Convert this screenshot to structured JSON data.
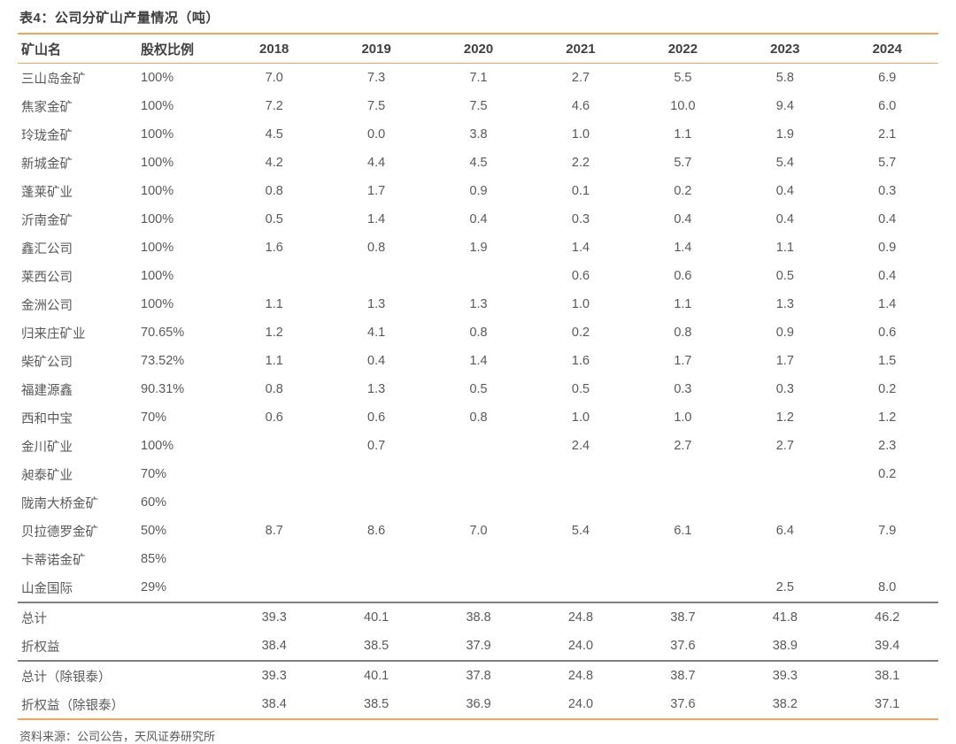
{
  "colors": {
    "accent_orange": "#F2A45F",
    "divider_gray": "#7F7F7F",
    "header_text": "#404040",
    "body_text": "#595959"
  },
  "chart_data": {
    "type": "table",
    "title": "表4：公司分矿山产量情况（吨）",
    "source": "资料来源：公司公告，天风证券研究所",
    "columns": [
      "矿山名",
      "股权比例",
      "2018",
      "2019",
      "2020",
      "2021",
      "2022",
      "2023",
      "2024"
    ],
    "rows": [
      [
        "三山岛金矿",
        "100%",
        "7.0",
        "7.3",
        "7.1",
        "2.7",
        "5.5",
        "5.8",
        "6.9"
      ],
      [
        "焦家金矿",
        "100%",
        "7.2",
        "7.5",
        "7.5",
        "4.6",
        "10.0",
        "9.4",
        "6.0"
      ],
      [
        "玲珑金矿",
        "100%",
        "4.5",
        "0.0",
        "3.8",
        "1.0",
        "1.1",
        "1.9",
        "2.1"
      ],
      [
        "新城金矿",
        "100%",
        "4.2",
        "4.4",
        "4.5",
        "2.2",
        "5.7",
        "5.4",
        "5.7"
      ],
      [
        "蓬莱矿业",
        "100%",
        "0.8",
        "1.7",
        "0.9",
        "0.1",
        "0.2",
        "0.4",
        "0.3"
      ],
      [
        "沂南金矿",
        "100%",
        "0.5",
        "1.4",
        "0.4",
        "0.3",
        "0.4",
        "0.4",
        "0.4"
      ],
      [
        "鑫汇公司",
        "100%",
        "1.6",
        "0.8",
        "1.9",
        "1.4",
        "1.4",
        "1.1",
        "0.9"
      ],
      [
        "莱西公司",
        "100%",
        "",
        "",
        "",
        "0.6",
        "0.6",
        "0.5",
        "0.4"
      ],
      [
        "金洲公司",
        "100%",
        "1.1",
        "1.3",
        "1.3",
        "1.0",
        "1.1",
        "1.3",
        "1.4"
      ],
      [
        "归来庄矿业",
        "70.65%",
        "1.2",
        "4.1",
        "0.8",
        "0.2",
        "0.8",
        "0.9",
        "0.6"
      ],
      [
        "柴矿公司",
        "73.52%",
        "1.1",
        "0.4",
        "1.4",
        "1.6",
        "1.7",
        "1.7",
        "1.5"
      ],
      [
        "福建源鑫",
        "90.31%",
        "0.8",
        "1.3",
        "0.5",
        "0.5",
        "0.3",
        "0.3",
        "0.2"
      ],
      [
        "西和中宝",
        "70%",
        "0.6",
        "0.6",
        "0.8",
        "1.0",
        "1.0",
        "1.2",
        "1.2"
      ],
      [
        "金川矿业",
        "100%",
        "",
        "0.7",
        "",
        "2.4",
        "2.7",
        "2.7",
        "2.3"
      ],
      [
        "昶泰矿业",
        "70%",
        "",
        "",
        "",
        "",
        "",
        "",
        "0.2"
      ],
      [
        "陇南大桥金矿",
        "60%",
        "",
        "",
        "",
        "",
        "",
        "",
        ""
      ],
      [
        "贝拉德罗金矿",
        "50%",
        "8.7",
        "8.6",
        "7.0",
        "5.4",
        "6.1",
        "6.4",
        "7.9"
      ],
      [
        "卡蒂诺金矿",
        "85%",
        "",
        "",
        "",
        "",
        "",
        "",
        ""
      ],
      [
        "山金国际",
        "29%",
        "",
        "",
        "",
        "",
        "",
        "2.5",
        "8.0"
      ]
    ],
    "summary_rows": [
      [
        "总计",
        "",
        "39.3",
        "40.1",
        "38.8",
        "24.8",
        "38.7",
        "41.8",
        "46.2"
      ],
      [
        "折权益",
        "",
        "38.4",
        "38.5",
        "37.9",
        "24.0",
        "37.6",
        "38.9",
        "39.4"
      ]
    ],
    "summary_rows_ex_yintai": [
      [
        "总计（除银泰）",
        "",
        "39.3",
        "40.1",
        "37.8",
        "24.8",
        "38.7",
        "39.3",
        "38.1"
      ],
      [
        "折权益（除银泰）",
        "",
        "38.4",
        "38.5",
        "36.9",
        "24.0",
        "37.6",
        "38.2",
        "37.1"
      ]
    ]
  }
}
